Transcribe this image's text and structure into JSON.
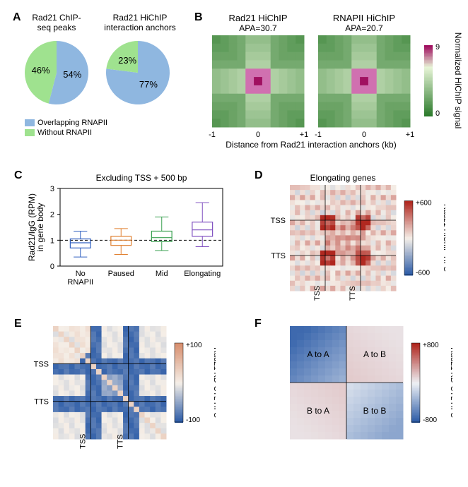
{
  "panelA": {
    "label": "A",
    "pie1": {
      "title": "Rad21 ChIP-\nseq peaks",
      "slices": [
        {
          "pct": 54,
          "label": "54%",
          "color": "#8fb7e0"
        },
        {
          "pct": 46,
          "label": "46%",
          "color": "#9fe28f"
        }
      ]
    },
    "pie2": {
      "title": "Rad21 HiChIP\ninteraction anchors",
      "slices": [
        {
          "pct": 77,
          "label": "77%",
          "color": "#8fb7e0"
        },
        {
          "pct": 23,
          "label": "23%",
          "color": "#9fe28f"
        }
      ]
    },
    "legend": [
      {
        "label": "Overlapping RNAPII",
        "color": "#8fb7e0"
      },
      {
        "label": "Without RNAPII",
        "color": "#9fe28f"
      }
    ]
  },
  "panelB": {
    "label": "B",
    "plots": [
      {
        "title": "Rad21 HiChIP",
        "apa": "APA=30.7"
      },
      {
        "title": "RNAPII HiChIP",
        "apa": "APA=20.7"
      }
    ],
    "xlabel": "Distance from Rad21 interaction anchors (kb)",
    "xticks": [
      "-1",
      "0",
      "+1"
    ],
    "colorbar_label": "Normalized HiChIP signal",
    "colorbar_ticks": [
      "9",
      "0"
    ],
    "grid_n": 11,
    "colors": {
      "low": "#2b7a2b",
      "mid": "#e8f5d8",
      "dark": "#a01060",
      "pink": "#d070b0"
    }
  },
  "panelC": {
    "label": "C",
    "title": "Excluding TSS + 500 bp",
    "ylabel": "Rad21/IgG (RPM)\nin gene body",
    "yticks": [
      "0",
      "1",
      "2",
      "3"
    ],
    "ymax": 3,
    "categories": [
      "No\nRNAPII",
      "Paused",
      "Mid",
      "Elongating"
    ],
    "boxes": [
      {
        "color": "#3060c0",
        "q1": 0.7,
        "med": 0.9,
        "q3": 1.05,
        "lo": 0.35,
        "hi": 1.35
      },
      {
        "color": "#e08030",
        "q1": 0.8,
        "med": 1.0,
        "q3": 1.15,
        "lo": 0.45,
        "hi": 1.45
      },
      {
        "color": "#3aa050",
        "q1": 0.95,
        "med": 1.1,
        "q3": 1.35,
        "lo": 0.6,
        "hi": 1.9
      },
      {
        "color": "#8050c0",
        "q1": 1.15,
        "med": 1.4,
        "q3": 1.7,
        "lo": 0.75,
        "hi": 2.45
      }
    ],
    "hline": 1.0
  },
  "panelD": {
    "label": "D",
    "title": "Elongating genes",
    "ylabels": [
      "TSS",
      "TTS"
    ],
    "xlabels": [
      "TSS",
      "TTS"
    ],
    "colorbar_label": "Rad21 HiChIP-Hi-C",
    "colorbar_ticks": [
      "+600",
      "-600"
    ],
    "colors": {
      "neg": "#2a5aa6",
      "zero": "#f5efe8",
      "pos": "#b02820"
    },
    "grid_n": 21,
    "line_positions": [
      7,
      14
    ]
  },
  "panelE": {
    "label": "E",
    "ylabels": [
      "TSS",
      "TTS"
    ],
    "xlabels": [
      "TSS",
      "TTS"
    ],
    "colorbar_label": "Rad21 KD-CTL Hi-C",
    "colorbar_ticks": [
      "+100",
      "-100"
    ],
    "colors": {
      "neg": "#2a5aa6",
      "zero": "#f5efe8",
      "pos": "#d89070"
    },
    "grid_n": 21,
    "line_positions": [
      7,
      14
    ]
  },
  "panelF": {
    "label": "F",
    "quad_labels": [
      "A to A",
      "A to B",
      "B to A",
      "B to B"
    ],
    "colorbar_label": "Rad21 KD-CTL Hi-C",
    "colorbar_ticks": [
      "+800",
      "-800"
    ],
    "colors": {
      "neg": "#2a5aa6",
      "zero": "#eef1f5",
      "pos": "#b02820"
    },
    "grid_n": 16
  }
}
